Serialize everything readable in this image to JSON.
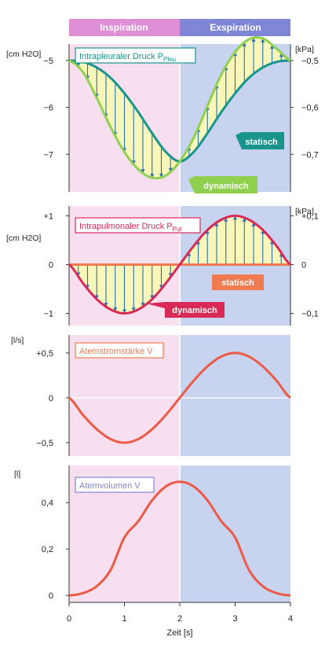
{
  "phases": {
    "inspiration": "Inspiration",
    "expiration": "Exspiration"
  },
  "colors": {
    "inspiration_bg": "#f8dff0",
    "expiration_bg": "#c7d3ef",
    "inspiration_band": "#de8fd6",
    "expiration_band": "#7f86d6",
    "dynamic_curve": "#8fd14f",
    "static_curve_pleu": "#17948c",
    "pul_curve": "#d92a57",
    "static_pul": "#f07b50",
    "flow_curve": "#ec5a45",
    "arrows": "#2a6fb0",
    "hatch_fill": "#f8f6b8"
  },
  "x_axis": {
    "label": "Zeit [s]",
    "ticks": [
      "0",
      "1",
      "2",
      "3",
      "4"
    ],
    "xlim": [
      0,
      4
    ]
  },
  "chart_data": [
    {
      "type": "line",
      "title": "Intrapleuraler Druck P",
      "title_sub": "Pleu",
      "ylabel_left": "[cm H2O]",
      "ylabel_right": "[kPa]",
      "ylim": [
        -7.8,
        -4.65
      ],
      "yticks_left": [
        -5,
        -6,
        -7
      ],
      "yticks_left_labels": [
        "−5",
        "−6",
        "−7"
      ],
      "yticks_right_labels": [
        "−0,5",
        "−0,6",
        "−0,7"
      ],
      "tags": {
        "static": "statisch",
        "dynamic": "dynamisch"
      },
      "series": [
        {
          "name": "statisch",
          "x": [
            0,
            0.25,
            0.5,
            0.75,
            1.0,
            1.25,
            1.5,
            1.75,
            2.0,
            2.25,
            2.5,
            2.75,
            3.0,
            3.25,
            3.5,
            3.75,
            4.0
          ],
          "y": [
            -5.0,
            -5.03,
            -5.15,
            -5.37,
            -5.7,
            -6.1,
            -6.55,
            -6.95,
            -7.15,
            -6.95,
            -6.55,
            -6.1,
            -5.7,
            -5.37,
            -5.15,
            -5.03,
            -5.0
          ]
        },
        {
          "name": "dynamisch",
          "x": [
            0,
            0.25,
            0.5,
            0.75,
            1.0,
            1.25,
            1.5,
            1.75,
            2.0,
            2.25,
            2.5,
            2.75,
            3.0,
            3.25,
            3.5,
            3.75,
            4.0
          ],
          "y": [
            -5.0,
            -5.25,
            -5.8,
            -6.42,
            -6.95,
            -7.32,
            -7.5,
            -7.45,
            -7.15,
            -6.65,
            -5.97,
            -5.3,
            -4.82,
            -4.55,
            -4.53,
            -4.75,
            -5.0
          ]
        }
      ]
    },
    {
      "type": "line",
      "title": "Intrapulmonaler Druck P",
      "title_sub": "Pul",
      "ylabel_left": "[cm H2O]",
      "ylabel_right": "[kPa]",
      "ylim": [
        -1.25,
        1.2
      ],
      "yticks_left": [
        1,
        0,
        -1
      ],
      "yticks_left_labels": [
        "+1",
        "0",
        "−1"
      ],
      "yticks_right_labels": [
        "+0,1",
        "0",
        "−0,1"
      ],
      "tags": {
        "static": "statisch",
        "dynamic": "dynamisch"
      },
      "series": [
        {
          "name": "statisch",
          "x": [
            0,
            4
          ],
          "y": [
            0,
            0
          ]
        },
        {
          "name": "dynamisch",
          "x": [
            0,
            0.25,
            0.5,
            0.75,
            1.0,
            1.25,
            1.5,
            1.75,
            2.0,
            2.25,
            2.5,
            2.75,
            3.0,
            3.25,
            3.5,
            3.75,
            4.0
          ],
          "y": [
            0,
            -0.38,
            -0.71,
            -0.92,
            -1.0,
            -0.92,
            -0.71,
            -0.38,
            0,
            0.38,
            0.71,
            0.92,
            1.0,
            0.92,
            0.71,
            0.38,
            0
          ]
        }
      ]
    },
    {
      "type": "line",
      "title": "Atemstromstärke V̇",
      "ylabel_left": "[l/s]",
      "ylim": [
        -0.65,
        0.7
      ],
      "yticks_left": [
        0.5,
        0,
        -0.5
      ],
      "yticks_left_labels": [
        "+0,5",
        "0",
        "−0,5"
      ],
      "series": [
        {
          "name": "Atemstromstärke",
          "x": [
            0,
            0.25,
            0.5,
            0.75,
            1.0,
            1.25,
            1.5,
            1.75,
            2.0,
            2.25,
            2.5,
            2.75,
            3.0,
            3.25,
            3.5,
            3.75,
            4.0
          ],
          "y": [
            0,
            -0.19,
            -0.35,
            -0.46,
            -0.5,
            -0.46,
            -0.35,
            -0.19,
            0,
            0.19,
            0.35,
            0.46,
            0.5,
            0.46,
            0.35,
            0.19,
            0
          ]
        }
      ]
    },
    {
      "type": "line",
      "title": "Atemvolumen V",
      "ylabel_left": "[l]",
      "ylim": [
        -0.03,
        0.56
      ],
      "yticks_left": [
        0.4,
        0.2,
        0
      ],
      "yticks_left_labels": [
        "0,4",
        "0,2",
        "0"
      ],
      "series": [
        {
          "name": "Atemvolumen",
          "x": [
            0,
            0.25,
            0.5,
            0.75,
            1.0,
            1.25,
            1.5,
            1.75,
            2.0,
            2.25,
            2.5,
            2.75,
            3.0,
            3.25,
            3.5,
            3.75,
            4.0
          ],
          "y": [
            0,
            0.01,
            0.04,
            0.11,
            0.25,
            0.32,
            0.41,
            0.47,
            0.49,
            0.47,
            0.41,
            0.32,
            0.25,
            0.11,
            0.04,
            0.01,
            0
          ]
        }
      ]
    }
  ]
}
